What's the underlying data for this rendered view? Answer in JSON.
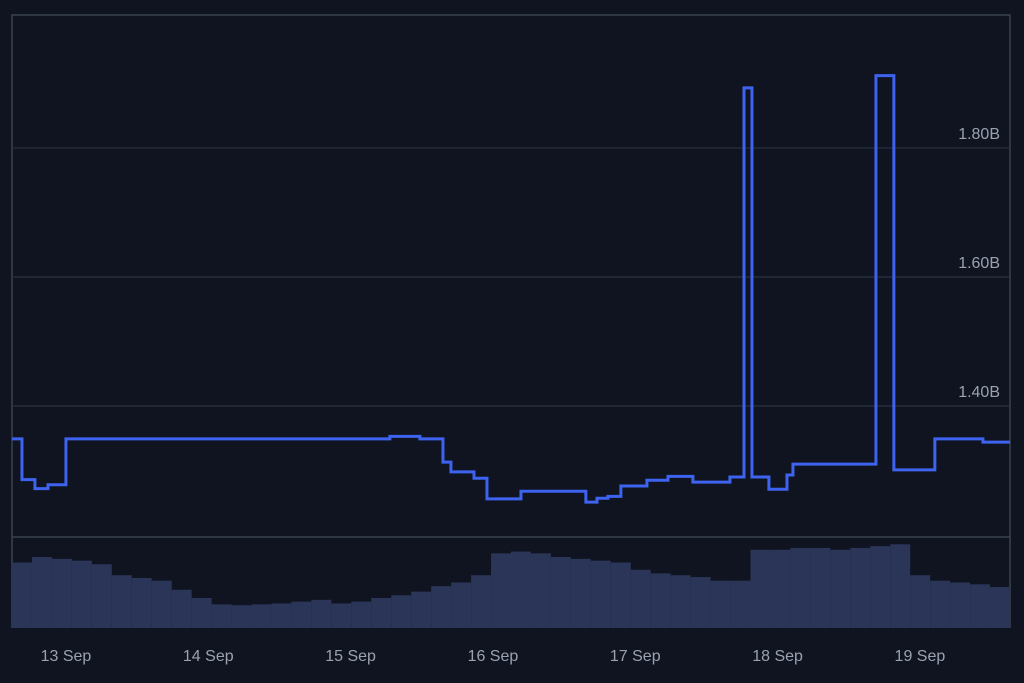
{
  "chart_data": [
    {
      "type": "line",
      "x": [
        12.621,
        12.691,
        12.691,
        12.782,
        12.782,
        12.874,
        12.874,
        13.0,
        13.0,
        15.276,
        15.276,
        15.487,
        15.487,
        15.649,
        15.649,
        15.705,
        15.705,
        15.867,
        15.867,
        15.958,
        15.958,
        16.197,
        16.197,
        16.653,
        16.653,
        16.731,
        16.731,
        16.808,
        16.808,
        16.899,
        16.899,
        17.082,
        17.082,
        17.23,
        17.23,
        17.405,
        17.405,
        17.665,
        17.665,
        17.764,
        17.764,
        17.82,
        17.82,
        17.939,
        17.939,
        18.066,
        18.066,
        18.108,
        18.108,
        18.691,
        18.691,
        18.817,
        18.817,
        19.105,
        19.105,
        19.443,
        19.443,
        19.633
      ],
      "series": [
        {
          "color": "#3d63f0",
          "values": [
            1349000000,
            1349000000,
            1286000000,
            1286000000,
            1272000000,
            1272000000,
            1278000000,
            1278000000,
            1349000000,
            1349000000,
            1353000000,
            1353000000,
            1349000000,
            1349000000,
            1313000000,
            1313000000,
            1298000000,
            1298000000,
            1288000000,
            1288000000,
            1256000000,
            1256000000,
            1268000000,
            1268000000,
            1251000000,
            1251000000,
            1257000000,
            1257000000,
            1260000000,
            1260000000,
            1276000000,
            1276000000,
            1285000000,
            1285000000,
            1291000000,
            1291000000,
            1282000000,
            1282000000,
            1290000000,
            1290000000,
            1893000000,
            1893000000,
            1290000000,
            1290000000,
            1271000000,
            1271000000,
            1293000000,
            1293000000,
            1310000000,
            1310000000,
            1912000000,
            1912000000,
            1301000000,
            1301000000,
            1349000000,
            1349000000,
            1344000000,
            1344000000
          ]
        }
      ],
      "xlim": [
        12.621,
        19.633
      ],
      "xticks": [
        {
          "value": 13,
          "label": "13 Sep"
        },
        {
          "value": 14,
          "label": "14 Sep"
        },
        {
          "value": 15,
          "label": "15 Sep"
        },
        {
          "value": 16,
          "label": "16 Sep"
        },
        {
          "value": 17,
          "label": "17 Sep"
        },
        {
          "value": 18,
          "label": "18 Sep"
        },
        {
          "value": 19,
          "label": "19 Sep"
        }
      ],
      "ylim": [
        1197000000,
        2006000000
      ],
      "yticks": [
        {
          "value": 1400000000,
          "label": "1.40B"
        },
        {
          "value": 1600000000,
          "label": "1.60B"
        },
        {
          "value": 1800000000,
          "label": "1.80B"
        }
      ],
      "grid": true
    },
    {
      "type": "bar",
      "categories": [
        null,
        null,
        null,
        null,
        null,
        null,
        null,
        null,
        null,
        null,
        null,
        null,
        null,
        null,
        null,
        null,
        null,
        null,
        null,
        null,
        null,
        null,
        null,
        null,
        null,
        null,
        null,
        null,
        null,
        null,
        null,
        null,
        null,
        null,
        null,
        null,
        null,
        null,
        null,
        null,
        null,
        null,
        null,
        null,
        null,
        null,
        null,
        null,
        null,
        null
      ],
      "values": [
        72,
        78,
        76,
        74,
        70,
        58,
        55,
        52,
        42,
        33,
        26,
        25,
        26,
        27,
        29,
        31,
        27,
        29,
        33,
        36,
        40,
        46,
        50,
        58,
        82,
        84,
        82,
        78,
        76,
        74,
        72,
        64,
        60,
        58,
        56,
        52,
        52,
        86,
        86,
        88,
        88,
        86,
        88,
        90,
        92,
        58,
        52,
        50,
        48,
        45
      ],
      "color": "#2a3558",
      "ylim": [
        0,
        100
      ]
    }
  ]
}
